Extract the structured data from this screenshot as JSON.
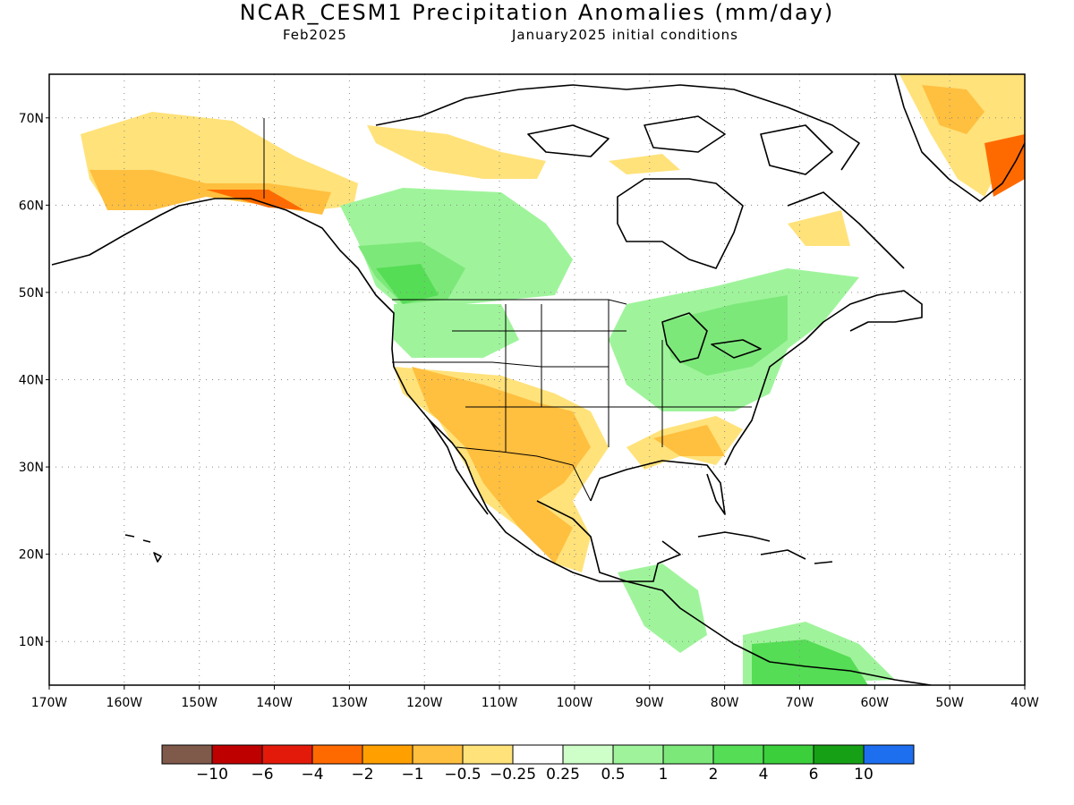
{
  "title": "NCAR_CESM1 Precipitation Anomalies (mm/day)",
  "subtitle_left": "Feb2025",
  "subtitle_right": "January2025 initial conditions",
  "map": {
    "lon_range": [
      -170,
      -40
    ],
    "lat_range": [
      5,
      75
    ],
    "lon_ticks": [
      "170W",
      "160W",
      "150W",
      "140W",
      "130W",
      "120W",
      "110W",
      "100W",
      "90W",
      "80W",
      "70W",
      "60W",
      "50W",
      "40W"
    ],
    "lat_ticks": [
      "10N",
      "20N",
      "30N",
      "40N",
      "50N",
      "60N",
      "70N"
    ],
    "grid": "dotted"
  },
  "colorbar": {
    "colors": [
      "#7f5a4b",
      "#bf0000",
      "#e31a0a",
      "#ff6a00",
      "#ffa000",
      "#ffbf3f",
      "#ffe27a",
      "#ffffff",
      "#cfffc8",
      "#9ff49b",
      "#7de87a",
      "#55dd55",
      "#3ccf3c",
      "#16a016",
      "#1e6ef0"
    ],
    "labels": [
      "-10",
      "-6",
      "-4",
      "-2",
      "-1",
      "-0.5",
      "-0.25",
      "0.25",
      "0.5",
      "1",
      "2",
      "4",
      "6",
      "10"
    ]
  }
}
